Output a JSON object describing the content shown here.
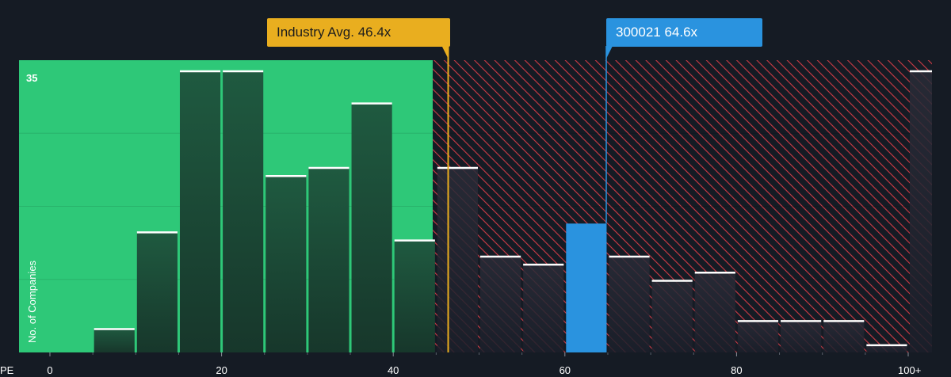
{
  "colors": {
    "background": "#151b24",
    "fair_zone": "#2ec878",
    "bar_dark": "#1b4a37",
    "overvalued_stripe": "#cf3b46",
    "company_bar": "#2a93df",
    "industry_line": "#e9ae1f",
    "bar_top": "#ffffff"
  },
  "callouts": {
    "industry": "Industry Avg. 46.4x",
    "company": "300021 64.6x"
  },
  "chart_data": {
    "type": "bar",
    "xlabel": "PE",
    "ylabel": "No. of Companies",
    "x_ticks": [
      {
        "value": 0,
        "label": "0"
      },
      {
        "value": 20,
        "label": "20"
      },
      {
        "value": 40,
        "label": "40"
      },
      {
        "value": 60,
        "label": "60"
      },
      {
        "value": 80,
        "label": "80"
      },
      {
        "value": 100,
        "label": "100+"
      }
    ],
    "y_ticks": [
      {
        "value": 35,
        "label": "35"
      }
    ],
    "ylim": [
      0,
      35
    ],
    "bin_width": 5,
    "bins": [
      5,
      10,
      15,
      20,
      25,
      30,
      35,
      40,
      45,
      50,
      55,
      60,
      65,
      70,
      75,
      80,
      85,
      90,
      95,
      100
    ],
    "values": [
      3,
      15,
      35,
      35,
      22,
      23,
      31,
      14,
      23,
      12,
      11,
      16,
      12,
      9,
      10,
      4,
      4,
      4,
      1,
      35
    ],
    "highlight_bin": 60,
    "industry_avg": 46.4,
    "company_pe": 64.6,
    "fair_zone_max": 44.6
  }
}
